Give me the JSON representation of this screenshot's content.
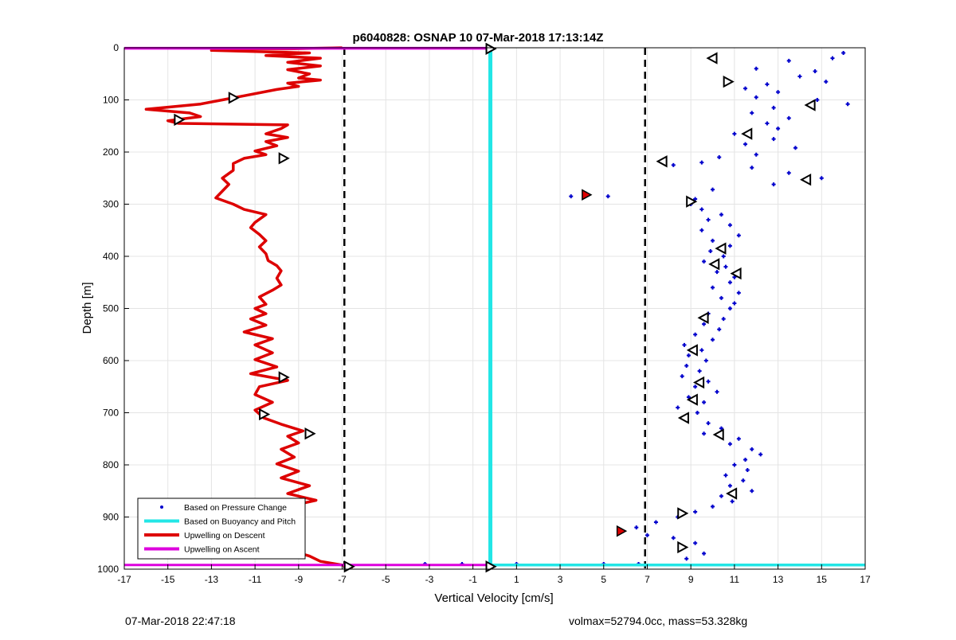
{
  "chart_data": {
    "type": "scatter",
    "title": "p6040828: OSNAP 10 07-Mar-2018 17:13:14Z",
    "xlabel": "Vertical Velocity [cm/s]",
    "ylabel": "Depth [m]",
    "xlim": [
      -17,
      17
    ],
    "ylim": [
      0,
      1000
    ],
    "y_reversed": true,
    "grid": true,
    "xticks": [
      -17,
      -15,
      -13,
      -11,
      -9,
      -7,
      -5,
      -3,
      -1,
      1,
      3,
      5,
      7,
      9,
      11,
      13,
      15,
      17
    ],
    "yticks": [
      0,
      100,
      200,
      300,
      400,
      500,
      600,
      700,
      800,
      900,
      1000
    ],
    "legend_position": "bottom-left",
    "legend": [
      {
        "label": "Based on Pressure Change",
        "color": "#0000cc",
        "style": "dot"
      },
      {
        "label": "Based on Buoyancy and Pitch",
        "color": "#22e6e6",
        "style": "line"
      },
      {
        "label": "Upwelling on Descent",
        "color": "#dd0000",
        "style": "line"
      },
      {
        "label": "Upwelling on Ascent",
        "color": "#dd00dd",
        "style": "line"
      }
    ],
    "threshold_lines_x": [
      -6.9,
      6.9
    ],
    "series": [
      {
        "name": "Upwelling on Descent",
        "kind": "line",
        "color": "#dd0000",
        "points": [
          [
            -7,
            0
          ],
          [
            -13,
            5
          ],
          [
            -8.5,
            10
          ],
          [
            -10.5,
            15
          ],
          [
            -8,
            20
          ],
          [
            -9.5,
            28
          ],
          [
            -8,
            35
          ],
          [
            -9.5,
            42
          ],
          [
            -8.5,
            50
          ],
          [
            -9,
            58
          ],
          [
            -8,
            62
          ],
          [
            -9.5,
            68
          ],
          [
            -9,
            74
          ],
          [
            -10,
            80
          ],
          [
            -11.5,
            92
          ],
          [
            -12.5,
            100
          ],
          [
            -13.5,
            108
          ],
          [
            -16,
            118
          ],
          [
            -14,
            125
          ],
          [
            -13.5,
            132
          ],
          [
            -15,
            140
          ],
          [
            -14.5,
            145
          ],
          [
            -9.5,
            148
          ],
          [
            -9.8,
            155
          ],
          [
            -10.5,
            165
          ],
          [
            -9.5,
            172
          ],
          [
            -10.5,
            180
          ],
          [
            -10,
            188
          ],
          [
            -11,
            198
          ],
          [
            -10.5,
            205
          ],
          [
            -11.5,
            212
          ],
          [
            -12,
            222
          ],
          [
            -12,
            235
          ],
          [
            -12.5,
            250
          ],
          [
            -12.2,
            262
          ],
          [
            -12.5,
            275
          ],
          [
            -12.8,
            288
          ],
          [
            -12,
            300
          ],
          [
            -11.5,
            310
          ],
          [
            -10.5,
            320
          ],
          [
            -11,
            335
          ],
          [
            -11.2,
            345
          ],
          [
            -10.8,
            358
          ],
          [
            -10.5,
            370
          ],
          [
            -10.8,
            382
          ],
          [
            -10.5,
            395
          ],
          [
            -10.4,
            408
          ],
          [
            -10,
            418
          ],
          [
            -9.8,
            428
          ],
          [
            -10,
            442
          ],
          [
            -9.8,
            455
          ],
          [
            -10.2,
            465
          ],
          [
            -10.8,
            478
          ],
          [
            -10.5,
            492
          ],
          [
            -11,
            500
          ],
          [
            -10.5,
            510
          ],
          [
            -11.2,
            520
          ],
          [
            -10.5,
            532
          ],
          [
            -11.5,
            545
          ],
          [
            -10.2,
            558
          ],
          [
            -11,
            570
          ],
          [
            -10.2,
            585
          ],
          [
            -11,
            598
          ],
          [
            -10,
            612
          ],
          [
            -11.2,
            625
          ],
          [
            -9.5,
            638
          ],
          [
            -10.8,
            650
          ],
          [
            -11,
            665
          ],
          [
            -10.2,
            680
          ],
          [
            -11,
            695
          ],
          [
            -10.6,
            710
          ],
          [
            -9.8,
            722
          ],
          [
            -8.8,
            735
          ],
          [
            -9.5,
            745
          ],
          [
            -9,
            758
          ],
          [
            -9.8,
            770
          ],
          [
            -9.2,
            785
          ],
          [
            -10,
            798
          ],
          [
            -9,
            812
          ],
          [
            -9.8,
            825
          ],
          [
            -8.5,
            840
          ],
          [
            -9.5,
            855
          ],
          [
            -8.2,
            868
          ],
          [
            -9.5,
            880
          ],
          [
            -9.2,
            895
          ],
          [
            -10,
            908
          ],
          [
            -9.2,
            920
          ],
          [
            -9.8,
            935
          ],
          [
            -9,
            948
          ],
          [
            -9.5,
            962
          ],
          [
            -8.5,
            975
          ],
          [
            -8,
            985
          ],
          [
            -7,
            992
          ],
          [
            -6.5,
            996
          ]
        ]
      },
      {
        "name": "Upwelling on Ascent",
        "kind": "line",
        "color": "#dd00dd",
        "points": [
          [
            -17,
            1
          ],
          [
            -0.2,
            1
          ],
          [
            -17,
            992
          ],
          [
            -0.2,
            992
          ]
        ]
      },
      {
        "name": "Based on Buoyancy and Pitch",
        "kind": "line",
        "color": "#22e6e6",
        "points": [
          [
            -0.2,
            0
          ],
          [
            -0.2,
            990
          ],
          [
            17,
            992
          ]
        ]
      },
      {
        "name": "Based on Pressure Change",
        "kind": "scatter",
        "color": "#0000cc",
        "points": [
          [
            16,
            10
          ],
          [
            15.5,
            20
          ],
          [
            13.5,
            25
          ],
          [
            12,
            40
          ],
          [
            14.7,
            45
          ],
          [
            14,
            55
          ],
          [
            15.2,
            65
          ],
          [
            12.5,
            70
          ],
          [
            11.5,
            78
          ],
          [
            13,
            85
          ],
          [
            12,
            95
          ],
          [
            14.8,
            100
          ],
          [
            16.2,
            108
          ],
          [
            12.8,
            115
          ],
          [
            11.8,
            125
          ],
          [
            13.5,
            135
          ],
          [
            12.5,
            145
          ],
          [
            13,
            155
          ],
          [
            11,
            165
          ],
          [
            12.8,
            175
          ],
          [
            11.5,
            185
          ],
          [
            13.8,
            192
          ],
          [
            12,
            205
          ],
          [
            10.3,
            210
          ],
          [
            9.5,
            220
          ],
          [
            8.2,
            225
          ],
          [
            11.8,
            230
          ],
          [
            13.5,
            240
          ],
          [
            15,
            250
          ],
          [
            12.8,
            262
          ],
          [
            10,
            272
          ],
          [
            3.5,
            285
          ],
          [
            5.2,
            285
          ],
          [
            4.2,
            280
          ],
          [
            9.2,
            290
          ],
          [
            9,
            300
          ],
          [
            9.5,
            310
          ],
          [
            10.4,
            320
          ],
          [
            9.8,
            330
          ],
          [
            10.8,
            340
          ],
          [
            9.5,
            350
          ],
          [
            11.2,
            360
          ],
          [
            10,
            370
          ],
          [
            10.8,
            380
          ],
          [
            9.9,
            390
          ],
          [
            10.5,
            400
          ],
          [
            9.6,
            410
          ],
          [
            10.6,
            420
          ],
          [
            10.2,
            430
          ],
          [
            11,
            440
          ],
          [
            10.8,
            450
          ],
          [
            10,
            460
          ],
          [
            11.2,
            470
          ],
          [
            10.4,
            480
          ],
          [
            11,
            490
          ],
          [
            10.8,
            500
          ],
          [
            9.8,
            510
          ],
          [
            10.5,
            520
          ],
          [
            9.6,
            530
          ],
          [
            10.3,
            540
          ],
          [
            9.2,
            550
          ],
          [
            10,
            560
          ],
          [
            8.7,
            570
          ],
          [
            9.5,
            580
          ],
          [
            8.9,
            590
          ],
          [
            9.7,
            600
          ],
          [
            8.8,
            610
          ],
          [
            9.4,
            620
          ],
          [
            8.6,
            630
          ],
          [
            9.8,
            640
          ],
          [
            9.2,
            650
          ],
          [
            10.2,
            660
          ],
          [
            8.9,
            670
          ],
          [
            9.6,
            680
          ],
          [
            8.4,
            690
          ],
          [
            9.3,
            700
          ],
          [
            8.7,
            710
          ],
          [
            9.8,
            720
          ],
          [
            10.4,
            730
          ],
          [
            9.6,
            740
          ],
          [
            11.2,
            750
          ],
          [
            10.8,
            760
          ],
          [
            11.8,
            770
          ],
          [
            12.2,
            780
          ],
          [
            11.5,
            790
          ],
          [
            11,
            800
          ],
          [
            11.6,
            810
          ],
          [
            10.6,
            820
          ],
          [
            11.4,
            830
          ],
          [
            10.8,
            840
          ],
          [
            11.8,
            850
          ],
          [
            10.4,
            860
          ],
          [
            10.9,
            870
          ],
          [
            10,
            880
          ],
          [
            9.2,
            890
          ],
          [
            8.4,
            900
          ],
          [
            7.4,
            910
          ],
          [
            6.5,
            920
          ],
          [
            5.8,
            928
          ],
          [
            7,
            935
          ],
          [
            8.2,
            940
          ],
          [
            9.2,
            950
          ],
          [
            8.6,
            960
          ],
          [
            9.6,
            970
          ],
          [
            8.8,
            980
          ],
          [
            5,
            990
          ],
          [
            6.6,
            990
          ],
          [
            1,
            990
          ],
          [
            -1.5,
            990
          ],
          [
            -3.2,
            990
          ]
        ]
      }
    ],
    "markers": [
      {
        "dir": "right",
        "points": [
          [
            -0.2,
            2
          ],
          [
            -12,
            96
          ],
          [
            -14.5,
            138
          ],
          [
            -9.7,
            212
          ],
          [
            -9.7,
            632
          ],
          [
            -10.6,
            703
          ],
          [
            -8.5,
            740
          ],
          [
            -9.5,
            925
          ],
          [
            -9.6,
            963
          ],
          [
            -6.7,
            995
          ],
          [
            -0.2,
            995
          ],
          [
            10.7,
            65
          ],
          [
            9,
            295
          ],
          [
            8.6,
            893
          ],
          [
            8.6,
            958
          ]
        ]
      },
      {
        "dir": "left",
        "points": [
          [
            10,
            20
          ],
          [
            14.5,
            110
          ],
          [
            11.6,
            165
          ],
          [
            7.7,
            218
          ],
          [
            14.3,
            253
          ],
          [
            10.4,
            385
          ],
          [
            10.1,
            415
          ],
          [
            11.1,
            433
          ],
          [
            9.6,
            518
          ],
          [
            9.1,
            580
          ],
          [
            9.4,
            642
          ],
          [
            9.1,
            675
          ],
          [
            8.7,
            710
          ],
          [
            10.3,
            742
          ],
          [
            10.9,
            855
          ]
        ]
      }
    ],
    "red_star_points": [
      [
        4.2,
        282
      ],
      [
        5.8,
        927
      ]
    ]
  },
  "footer": {
    "timestamp": "07-Mar-2018 22:47:18",
    "info": "volmax=52794.0cc, mass=53.328kg"
  }
}
